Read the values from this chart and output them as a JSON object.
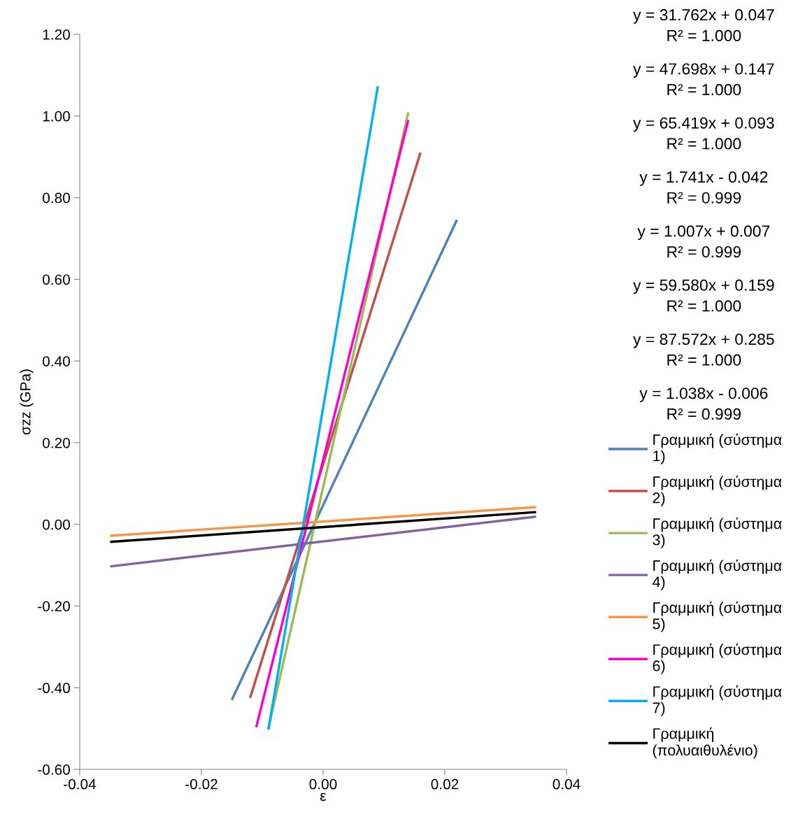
{
  "chart_data": {
    "type": "line",
    "xlabel": "ε",
    "ylabel": "σzz (GPa)",
    "xlim": [
      -0.04,
      0.04
    ],
    "ylim": [
      -0.6,
      1.2
    ],
    "xticks": [
      {
        "value": -0.04,
        "label": "-0.04"
      },
      {
        "value": -0.02,
        "label": "-0.02"
      },
      {
        "value": 0,
        "label": "0.00"
      },
      {
        "value": 0.02,
        "label": "0.02"
      },
      {
        "value": 0.04,
        "label": "0.04"
      }
    ],
    "yticks": [
      {
        "value": -0.6,
        "label": "-0.60"
      },
      {
        "value": -0.4,
        "label": "-0.40"
      },
      {
        "value": -0.2,
        "label": "-0.20"
      },
      {
        "value": 0,
        "label": "0.00"
      },
      {
        "value": 0.2,
        "label": "0.20"
      },
      {
        "value": 0.4,
        "label": "0.40"
      },
      {
        "value": 0.6,
        "label": "0.60"
      },
      {
        "value": 0.8,
        "label": "0.80"
      },
      {
        "value": 1.0,
        "label": "1.00"
      },
      {
        "value": 1.2,
        "label": "1.20"
      }
    ],
    "grid": false,
    "legend": "right",
    "marker": "none",
    "line_style": "solid",
    "series": [
      {
        "name": "Γραμμική (σύστημα 1)",
        "color": "#4f81bd",
        "x": [
          -0.015,
          0.022
        ],
        "values": [
          -0.43,
          0.746
        ]
      },
      {
        "name": "Γραμμική (σύστημα 2)",
        "color": "#c0504d",
        "x": [
          -0.012,
          0.016
        ],
        "values": [
          -0.425,
          0.91
        ]
      },
      {
        "name": "Γραμμική (σύστημα 3)",
        "color": "#9bbb59",
        "x": [
          -0.009,
          0.014
        ],
        "values": [
          -0.5,
          1.009
        ]
      },
      {
        "name": "Γραμμική (σύστημα 4)",
        "color": "#8064a2",
        "x": [
          -0.035,
          0.035
        ],
        "values": [
          -0.103,
          0.019
        ]
      },
      {
        "name": "Γραμμική (σύστημα 5)",
        "color": "#f79646",
        "x": [
          -0.035,
          0.035
        ],
        "values": [
          -0.028,
          0.042
        ]
      },
      {
        "name": "Γραμμική (σύστημα 6)",
        "color": "#ff00cc",
        "x": [
          -0.011,
          0.014
        ],
        "values": [
          -0.497,
          0.99
        ]
      },
      {
        "name": "Γραμμική (σύστημα 7)",
        "color": "#00b0f0",
        "x": [
          -0.009,
          0.009
        ],
        "values": [
          -0.503,
          1.073
        ]
      },
      {
        "name": "Γραμμική (πολυαιθυλένιο)",
        "color": "#000000",
        "x": [
          -0.035,
          0.035
        ],
        "values": [
          -0.043,
          0.03
        ]
      }
    ],
    "annotations": [
      "y = 31.762x + 0.047\nR² = 1.000",
      "y = 47.698x + 0.147\nR² = 1.000",
      "y = 65.419x + 0.093\nR² = 1.000",
      "y = 1.741x - 0.042\nR² = 0.999",
      "y = 1.007x + 0.007\nR² = 0.999",
      "y = 59.580x + 0.159\nR² = 1.000",
      "y = 87.572x + 0.285\nR² = 1.000",
      "y = 1.038x - 0.006\nR² = 0.999"
    ]
  }
}
